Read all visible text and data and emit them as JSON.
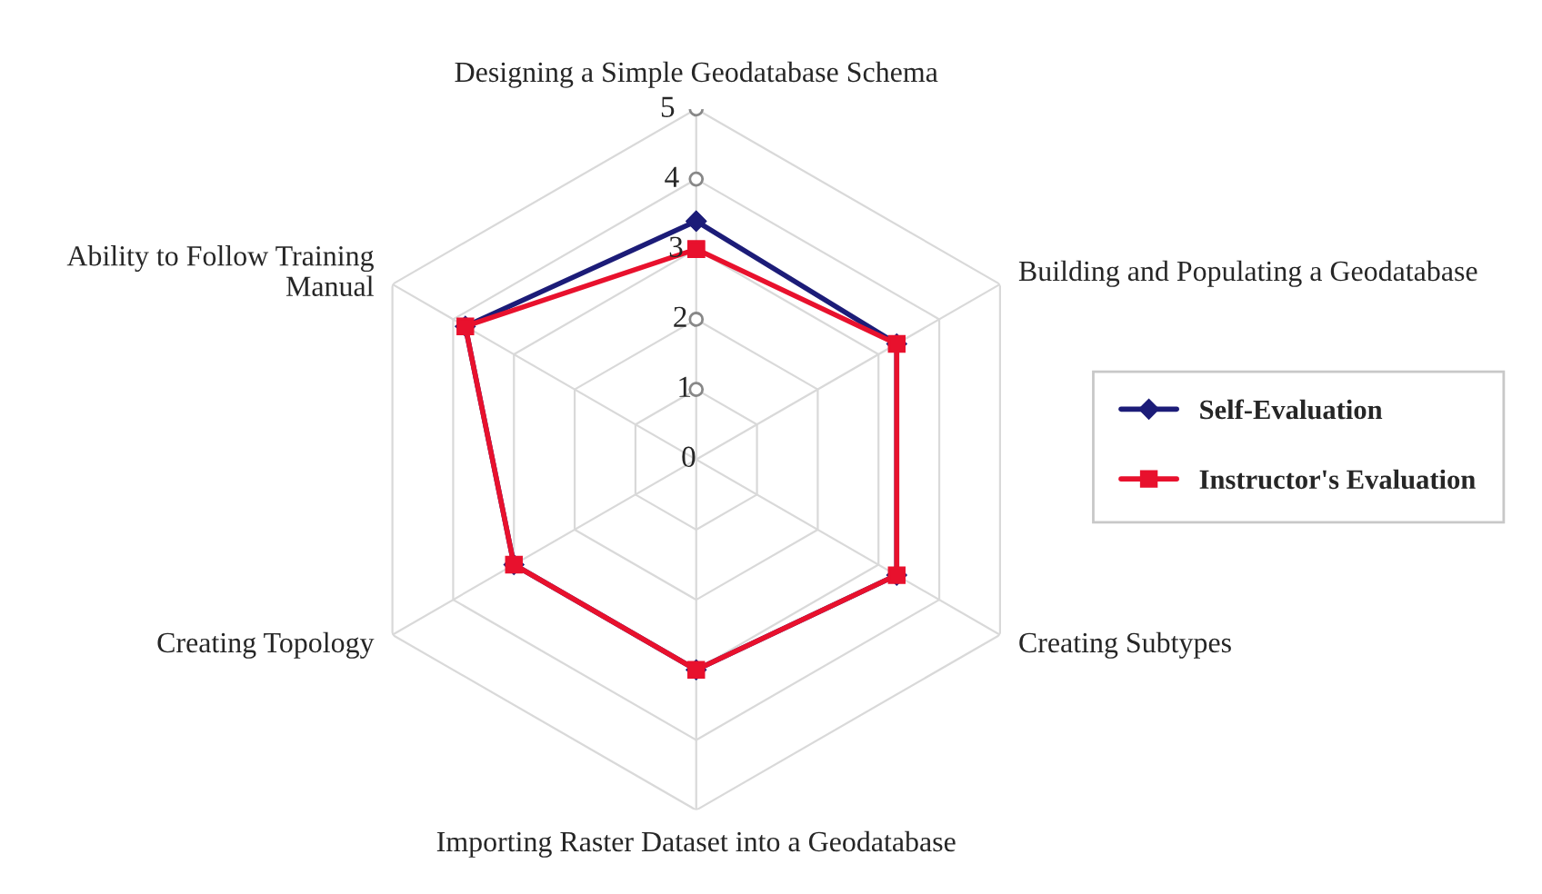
{
  "chart_data": {
    "type": "radar",
    "categories": [
      "Designing a Simple Geodatabase Schema",
      "Building and Populating a Geodatabase",
      "Creating Subtypes",
      "Importing Raster Dataset into a Geodatabase",
      "Creating Topology",
      "Ability to Follow Training Manual"
    ],
    "series": [
      {
        "name": "Self-Evaluation",
        "color": "#1c1c78",
        "marker": "diamond",
        "values": [
          3.4,
          3.3,
          3.3,
          3.0,
          3.0,
          3.8
        ]
      },
      {
        "name": "Instructor's Evaluation",
        "color": "#e8112d",
        "marker": "square",
        "values": [
          3.0,
          3.3,
          3.3,
          3.0,
          3.0,
          3.8
        ]
      }
    ],
    "ylim": [
      0,
      5
    ],
    "yticks": [
      0,
      1,
      2,
      3,
      4,
      5
    ],
    "grid": true,
    "legend": "right"
  }
}
